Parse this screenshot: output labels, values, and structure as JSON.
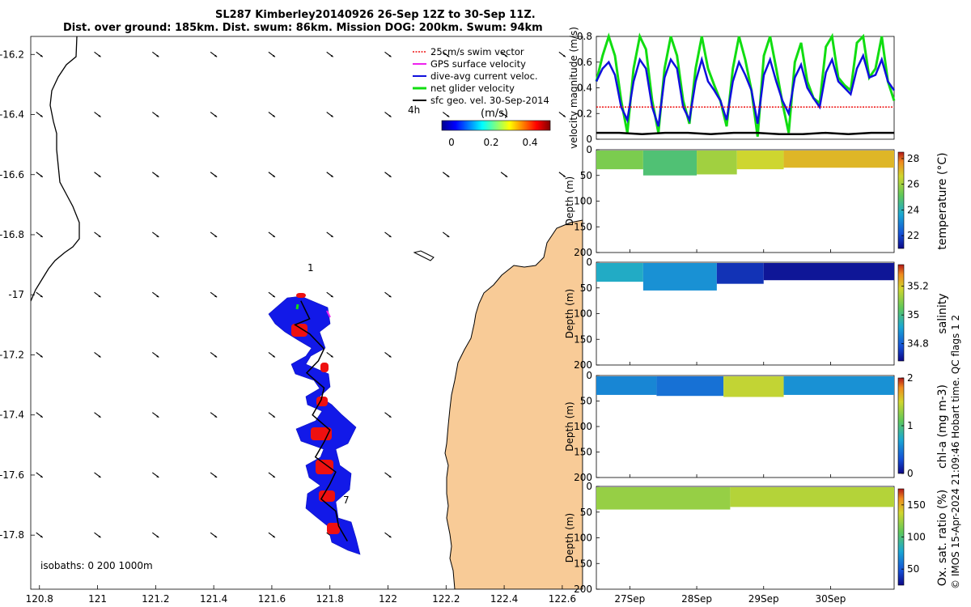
{
  "title": {
    "line1": "SL287 Kimberley20140926 26-Sep 12Z to 30-Sep 11Z.",
    "line2": "Dist. over ground: 185km. Dist. swum: 86km. Mission DOG: 200km. Swum: 94km"
  },
  "side_label": "© IMOS 15-Apr-2024 21:09:46 Hobart time. QC flags 1  2",
  "colors": {
    "land": "#f8cb97",
    "track_fill": "#1219e8",
    "track_red": "#ee1010",
    "swim": "#ee1111",
    "gps": "#ee22ee",
    "dive": "#1010dd",
    "net": "#11dd11",
    "sfc": "#000000"
  },
  "chart_data": [
    {
      "id": "map",
      "type": "map",
      "x_ticks": [
        "120.8",
        "121",
        "121.2",
        "121.4",
        "121.6",
        "121.8",
        "122",
        "122.2",
        "122.4",
        "122.6"
      ],
      "y_ticks": [
        "-16.2",
        "-16.4",
        "-16.6",
        "-16.8",
        "-17",
        "-17.2",
        "-17.4",
        "-17.6",
        "-17.8"
      ],
      "xlim": [
        120.77,
        122.67
      ],
      "ylim": [
        -17.98,
        -16.14
      ],
      "legend": [
        {
          "label": "25cm/s swim vector",
          "color": "#ee1111"
        },
        {
          "label": "GPS surface velocity",
          "color": "#ee22ee"
        },
        {
          "label": "dive-avg current veloc.",
          "color": "#1010dd"
        },
        {
          "label": "net glider velocity",
          "color": "#11dd11"
        },
        {
          "label": "sfc geo. vel. 30-Sep-2014",
          "color": "#000000"
        }
      ],
      "colorbar_title": "(m/s)",
      "colorbar_ticks": [
        "0",
        "0.2",
        "0.4"
      ],
      "annotations": [
        "4h",
        "1",
        "7"
      ],
      "isobath_label": "isobaths: 0   200  1000m",
      "track": [
        [
          121.7,
          -17.02
        ],
        [
          121.73,
          -17.08
        ],
        [
          121.68,
          -17.1
        ],
        [
          121.73,
          -17.13
        ],
        [
          121.78,
          -17.18
        ],
        [
          121.76,
          -17.22
        ],
        [
          121.72,
          -17.26
        ],
        [
          121.78,
          -17.31
        ],
        [
          121.77,
          -17.35
        ],
        [
          121.74,
          -17.4
        ],
        [
          121.8,
          -17.45
        ],
        [
          121.78,
          -17.49
        ],
        [
          121.75,
          -17.54
        ],
        [
          121.82,
          -17.59
        ],
        [
          121.8,
          -17.63
        ],
        [
          121.77,
          -17.68
        ],
        [
          121.82,
          -17.72
        ],
        [
          121.83,
          -17.77
        ],
        [
          121.86,
          -17.82
        ]
      ]
    },
    {
      "id": "velocity",
      "type": "line",
      "ylabel": "velocity magnitude (m/s)",
      "ylim": [
        0,
        0.8
      ],
      "y_ticks": [
        "0",
        "0.2",
        "0.4",
        "0.6",
        "0.8"
      ],
      "xlim": [
        26.5,
        30.95
      ],
      "series": [
        {
          "name": "net glider velocity",
          "color": "#11dd11",
          "values": [
            0.45,
            0.65,
            0.8,
            0.65,
            0.3,
            0.05,
            0.55,
            0.8,
            0.7,
            0.3,
            0.05,
            0.55,
            0.8,
            0.65,
            0.3,
            0.12,
            0.55,
            0.8,
            0.55,
            0.42,
            0.3,
            0.1,
            0.55,
            0.8,
            0.62,
            0.38,
            0.02,
            0.65,
            0.8,
            0.55,
            0.28,
            0.05,
            0.6,
            0.75,
            0.45,
            0.32,
            0.28,
            0.72,
            0.8,
            0.48,
            0.42,
            0.38,
            0.75,
            0.8,
            0.48,
            0.55,
            0.8,
            0.45,
            0.3
          ]
        },
        {
          "name": "dive-avg current veloc.",
          "color": "#1010dd",
          "values": [
            0.45,
            0.55,
            0.6,
            0.5,
            0.25,
            0.15,
            0.45,
            0.62,
            0.55,
            0.25,
            0.1,
            0.48,
            0.62,
            0.55,
            0.25,
            0.15,
            0.45,
            0.62,
            0.45,
            0.38,
            0.3,
            0.15,
            0.45,
            0.6,
            0.5,
            0.38,
            0.12,
            0.5,
            0.62,
            0.45,
            0.3,
            0.2,
            0.48,
            0.58,
            0.4,
            0.32,
            0.25,
            0.52,
            0.62,
            0.45,
            0.4,
            0.35,
            0.55,
            0.65,
            0.48,
            0.5,
            0.62,
            0.45,
            0.38
          ]
        },
        {
          "name": "25cm/s swim vector",
          "color": "#ee1111",
          "values": [
            0.25,
            0.25
          ]
        },
        {
          "name": "sfc geo. vel.",
          "color": "#000000",
          "values": [
            0.05,
            0.05,
            0.04,
            0.05,
            0.05,
            0.04,
            0.05,
            0.05,
            0.04,
            0.04,
            0.05,
            0.04,
            0.05,
            0.05
          ]
        }
      ]
    },
    {
      "id": "temperature",
      "type": "heatmap",
      "ylabel": "Depth (m)",
      "colorbar_label": "temperature (°C)",
      "colorbar_ticks": [
        "22",
        "24",
        "26",
        "28"
      ],
      "clim": [
        21,
        28.5
      ],
      "ylim": [
        0,
        200
      ],
      "y_ticks": [
        "0",
        "50",
        "100",
        "150",
        "200"
      ],
      "xlim": [
        26.5,
        30.95
      ],
      "segments": [
        {
          "x": [
            26.5,
            27.2
          ],
          "value": 25.5,
          "depth": 38
        },
        {
          "x": [
            27.2,
            28.0
          ],
          "value": 24.8,
          "depth": 50
        },
        {
          "x": [
            28.0,
            28.6
          ],
          "value": 26.0,
          "depth": 48
        },
        {
          "x": [
            28.6,
            29.3
          ],
          "value": 26.6,
          "depth": 38
        },
        {
          "x": [
            29.3,
            30.95
          ],
          "value": 27.1,
          "depth": 35
        }
      ]
    },
    {
      "id": "salinity",
      "type": "heatmap",
      "ylabel": "Depth (m)",
      "colorbar_label": "salinity",
      "colorbar_ticks": [
        "34.8",
        "35",
        "35.2"
      ],
      "clim": [
        34.68,
        35.35
      ],
      "ylim": [
        0,
        200
      ],
      "y_ticks": [
        "0",
        "50",
        "100",
        "150",
        "200"
      ],
      "xlim": [
        26.5,
        30.95
      ],
      "segments": [
        {
          "x": [
            26.5,
            27.2
          ],
          "value": 34.93,
          "depth": 38
        },
        {
          "x": [
            27.2,
            28.3
          ],
          "value": 34.88,
          "depth": 55
        },
        {
          "x": [
            28.3,
            29.0
          ],
          "value": 34.74,
          "depth": 42
        },
        {
          "x": [
            29.0,
            30.95
          ],
          "value": 34.7,
          "depth": 35
        }
      ]
    },
    {
      "id": "chlorophyll",
      "type": "heatmap",
      "ylabel": "Depth (m)",
      "colorbar_label": "chl-a (mg m-3)",
      "colorbar_ticks": [
        "0",
        "1",
        "2"
      ],
      "clim": [
        0,
        2
      ],
      "ylim": [
        0,
        200
      ],
      "y_ticks": [
        "0",
        "50",
        "100",
        "150",
        "200"
      ],
      "xlim": [
        26.5,
        30.95
      ],
      "segments": [
        {
          "x": [
            26.5,
            27.4
          ],
          "value": 0.55,
          "depth": 38
        },
        {
          "x": [
            27.4,
            28.4
          ],
          "value": 0.45,
          "depth": 40
        },
        {
          "x": [
            28.4,
            29.3
          ],
          "value": 1.45,
          "depth": 42
        },
        {
          "x": [
            29.3,
            30.95
          ],
          "value": 0.6,
          "depth": 38
        }
      ]
    },
    {
      "id": "oxygen",
      "type": "heatmap",
      "ylabel": "Depth (m)",
      "colorbar_label": "Ox. sat. ratio (%)",
      "colorbar_ticks": [
        "50",
        "100",
        "150"
      ],
      "clim": [
        25,
        175
      ],
      "ylim": [
        0,
        200
      ],
      "y_ticks": [
        "0",
        "50",
        "100",
        "150",
        "200"
      ],
      "xlim": [
        26.5,
        30.95
      ],
      "x_ticks": [
        "27Sep",
        "28Sep",
        "29Sep",
        "30Sep"
      ],
      "segments": [
        {
          "x": [
            26.5,
            28.5
          ],
          "value": 122,
          "depth": 45
        },
        {
          "x": [
            28.5,
            30.95
          ],
          "value": 130,
          "depth": 40
        }
      ]
    }
  ]
}
